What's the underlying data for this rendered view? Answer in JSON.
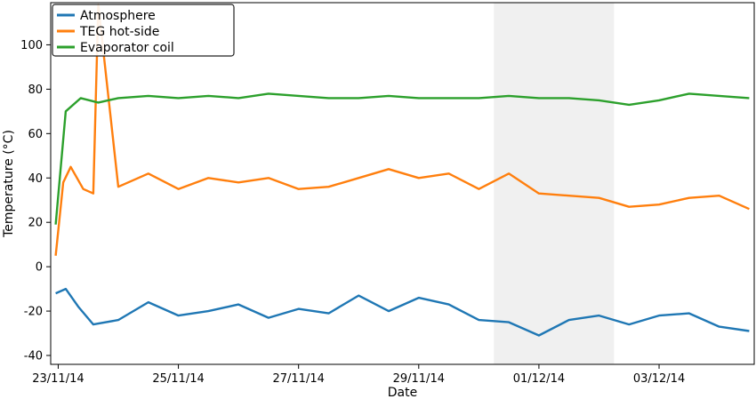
{
  "chart_data": {
    "type": "line",
    "xlabel": "Date",
    "ylabel": "Temperature (°C)",
    "x_tick_labels": [
      "23/11/14",
      "25/11/14",
      "27/11/14",
      "29/11/14",
      "01/12/14",
      "03/12/14"
    ],
    "y_tick_labels": [
      "-40",
      "-20",
      "0",
      "20",
      "40",
      "60",
      "80",
      "100"
    ],
    "xlim": [
      "2014-11-22T21:00",
      "2014-12-04T14:00"
    ],
    "ylim": [
      -44,
      119
    ],
    "grid": false,
    "legend_position": "top-left",
    "shaded_span": [
      "2014-11-30T06:00",
      "2014-12-02T06:00"
    ],
    "shaded_color": "#f0f0f0",
    "series": [
      {
        "name": "Atmosphere",
        "color": "#1f77b4",
        "x": [
          "2014-11-22T23:00",
          "2014-11-23T03:00",
          "2014-11-23T08:00",
          "2014-11-23T14:00",
          "2014-11-24T00:00",
          "2014-11-24T12:00",
          "2014-11-25T00:00",
          "2014-11-25T12:00",
          "2014-11-26T00:00",
          "2014-11-26T12:00",
          "2014-11-27T00:00",
          "2014-11-27T12:00",
          "2014-11-28T00:00",
          "2014-11-28T12:00",
          "2014-11-29T00:00",
          "2014-11-29T12:00",
          "2014-11-30T00:00",
          "2014-11-30T12:00",
          "2014-12-01T00:00",
          "2014-12-01T12:00",
          "2014-12-02T00:00",
          "2014-12-02T12:00",
          "2014-12-03T00:00",
          "2014-12-03T12:00",
          "2014-12-04T00:00",
          "2014-12-04T12:00"
        ],
        "y": [
          -12,
          -10,
          -18,
          -26,
          -24,
          -16,
          -22,
          -20,
          -17,
          -23,
          -19,
          -21,
          -13,
          -20,
          -14,
          -17,
          -24,
          -25,
          -31,
          -24,
          -22,
          -26,
          -22,
          -21,
          -27,
          -29
        ]
      },
      {
        "name": "TEG hot-side",
        "color": "#ff7f0e",
        "x": [
          "2014-11-22T23:00",
          "2014-11-23T02:00",
          "2014-11-23T05:00",
          "2014-11-23T10:00",
          "2014-11-23T14:00",
          "2014-11-23T16:00",
          "2014-11-24T00:00",
          "2014-11-24T12:00",
          "2014-11-25T00:00",
          "2014-11-25T12:00",
          "2014-11-26T00:00",
          "2014-11-26T12:00",
          "2014-11-27T00:00",
          "2014-11-27T12:00",
          "2014-11-28T00:00",
          "2014-11-28T12:00",
          "2014-11-29T00:00",
          "2014-11-29T12:00",
          "2014-11-30T00:00",
          "2014-11-30T12:00",
          "2014-12-01T00:00",
          "2014-12-01T12:00",
          "2014-12-02T00:00",
          "2014-12-02T12:00",
          "2014-12-03T00:00",
          "2014-12-03T12:00",
          "2014-12-04T00:00",
          "2014-12-04T12:00"
        ],
        "y": [
          5,
          38,
          45,
          35,
          33,
          118,
          36,
          42,
          35,
          40,
          38,
          40,
          35,
          36,
          40,
          44,
          40,
          42,
          35,
          42,
          33,
          32,
          31,
          27,
          28,
          31,
          32,
          26
        ]
      },
      {
        "name": "Evaporator coil",
        "color": "#2ca02c",
        "x": [
          "2014-11-22T23:00",
          "2014-11-23T03:00",
          "2014-11-23T09:00",
          "2014-11-23T16:00",
          "2014-11-24T00:00",
          "2014-11-24T12:00",
          "2014-11-25T00:00",
          "2014-11-25T12:00",
          "2014-11-26T00:00",
          "2014-11-26T12:00",
          "2014-11-27T00:00",
          "2014-11-27T12:00",
          "2014-11-28T00:00",
          "2014-11-28T12:00",
          "2014-11-29T00:00",
          "2014-11-29T12:00",
          "2014-11-30T00:00",
          "2014-11-30T12:00",
          "2014-12-01T00:00",
          "2014-12-01T12:00",
          "2014-12-02T00:00",
          "2014-12-02T12:00",
          "2014-12-03T00:00",
          "2014-12-03T12:00",
          "2014-12-04T00:00",
          "2014-12-04T12:00"
        ],
        "y": [
          19,
          70,
          76,
          74,
          76,
          77,
          76,
          77,
          76,
          78,
          77,
          76,
          76,
          77,
          76,
          76,
          76,
          77,
          76,
          76,
          75,
          73,
          75,
          78,
          77,
          76
        ]
      }
    ]
  }
}
